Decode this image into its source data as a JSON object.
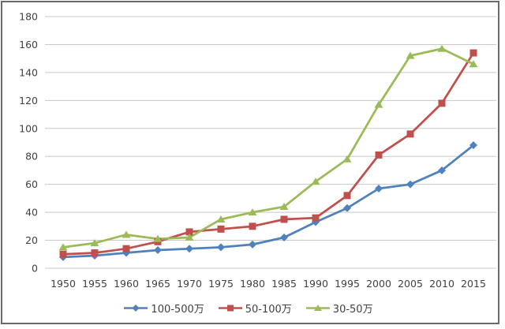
{
  "chart_data": {
    "type": "line",
    "title": "",
    "xlabel": "",
    "ylabel": "",
    "categories": [
      "1950",
      "1955",
      "1960",
      "1965",
      "1970",
      "1975",
      "1980",
      "1985",
      "1990",
      "1995",
      "2000",
      "2005",
      "2010",
      "2015"
    ],
    "series": [
      {
        "name": "100-500万",
        "color": "#4F81BD",
        "marker": "diamond",
        "values": [
          8,
          9,
          11,
          13,
          14,
          15,
          17,
          22,
          33,
          43,
          57,
          60,
          70,
          88
        ]
      },
      {
        "name": "50-100万",
        "color": "#C0504D",
        "marker": "square",
        "values": [
          10,
          11,
          14,
          19,
          26,
          28,
          30,
          35,
          36,
          52,
          81,
          96,
          118,
          154
        ]
      },
      {
        "name": "30-50万",
        "color": "#9BBB59",
        "marker": "triangle",
        "values": [
          15,
          18,
          24,
          21,
          22,
          35,
          40,
          44,
          62,
          78,
          117,
          152,
          157,
          146
        ]
      }
    ],
    "ylim": [
      0,
      180
    ],
    "ytick_step": 20,
    "yticks": [
      "0",
      "20",
      "40",
      "60",
      "80",
      "100",
      "120",
      "140",
      "160",
      "180"
    ],
    "grid": true,
    "legend_position": "bottom",
    "axis_text_color": "#404040",
    "gridline_color": "#c8c8c8",
    "background_color": "#ffffff",
    "frame_border_color": "#6a6a6a"
  }
}
